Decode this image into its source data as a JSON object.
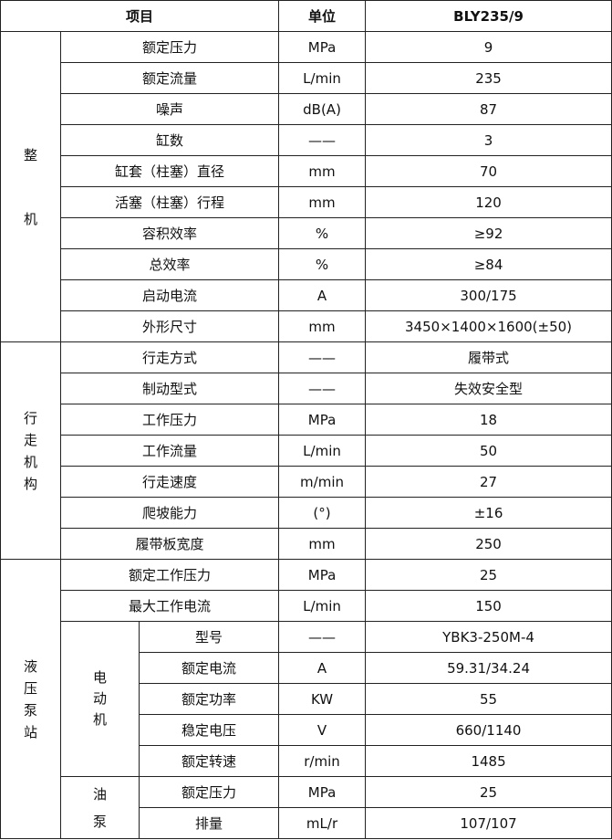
{
  "header": {
    "item": "项目",
    "unit": "单位",
    "model": "BLY235/9"
  },
  "sections": [
    {
      "label": "整机",
      "rows": [
        {
          "name": "额定压力",
          "unit": "MPa",
          "value": "9"
        },
        {
          "name": "额定流量",
          "unit": "L/min",
          "value": "235"
        },
        {
          "name": "噪声",
          "unit": "dB(A)",
          "value": "87"
        },
        {
          "name": "缸数",
          "unit": "——",
          "value": "3"
        },
        {
          "name": "缸套（柱塞）直径",
          "unit": "mm",
          "value": "70"
        },
        {
          "name": "活塞（柱塞）行程",
          "unit": "mm",
          "value": "120"
        },
        {
          "name": "容积效率",
          "unit": "%",
          "value": "≥92"
        },
        {
          "name": "总效率",
          "unit": "%",
          "value": "≥84"
        },
        {
          "name": "启动电流",
          "unit": "A",
          "value": "300/175"
        },
        {
          "name": "外形尺寸",
          "unit": "mm",
          "value": "3450×1400×1600(±50)"
        }
      ]
    },
    {
      "label": "行走机构",
      "rows": [
        {
          "name": "行走方式",
          "unit": "——",
          "value": "履带式"
        },
        {
          "name": "制动型式",
          "unit": "——",
          "value": "失效安全型"
        },
        {
          "name": "工作压力",
          "unit": "MPa",
          "value": "18"
        },
        {
          "name": "工作流量",
          "unit": "L/min",
          "value": "50"
        },
        {
          "name": "行走速度",
          "unit": "m/min",
          "value": "27"
        },
        {
          "name": "爬坡能力",
          "unit": "(°)",
          "value": "±16"
        },
        {
          "name": "履带板宽度",
          "unit": "mm",
          "value": "250"
        }
      ]
    },
    {
      "label": "液压泵站",
      "rows": [
        {
          "name": "额定工作压力",
          "unit": "MPa",
          "value": "25"
        },
        {
          "name": "最大工作电流",
          "unit": "L/min",
          "value": "150"
        }
      ],
      "groups": [
        {
          "label": "电动机",
          "rows": [
            {
              "name": "型号",
              "unit": "——",
              "value": "YBK3-250M-4"
            },
            {
              "name": "额定电流",
              "unit": "A",
              "value": "59.31/34.24"
            },
            {
              "name": "额定功率",
              "unit": "KW",
              "value": "55"
            },
            {
              "name": "稳定电压",
              "unit": "V",
              "value": "660/1140"
            },
            {
              "name": "额定转速",
              "unit": "r/min",
              "value": "1485"
            }
          ]
        },
        {
          "label": "油泵",
          "rows": [
            {
              "name": "额定压力",
              "unit": "MPa",
              "value": "25"
            },
            {
              "name": "排量",
              "unit": "mL/r",
              "value": "107/107"
            }
          ]
        }
      ]
    }
  ]
}
